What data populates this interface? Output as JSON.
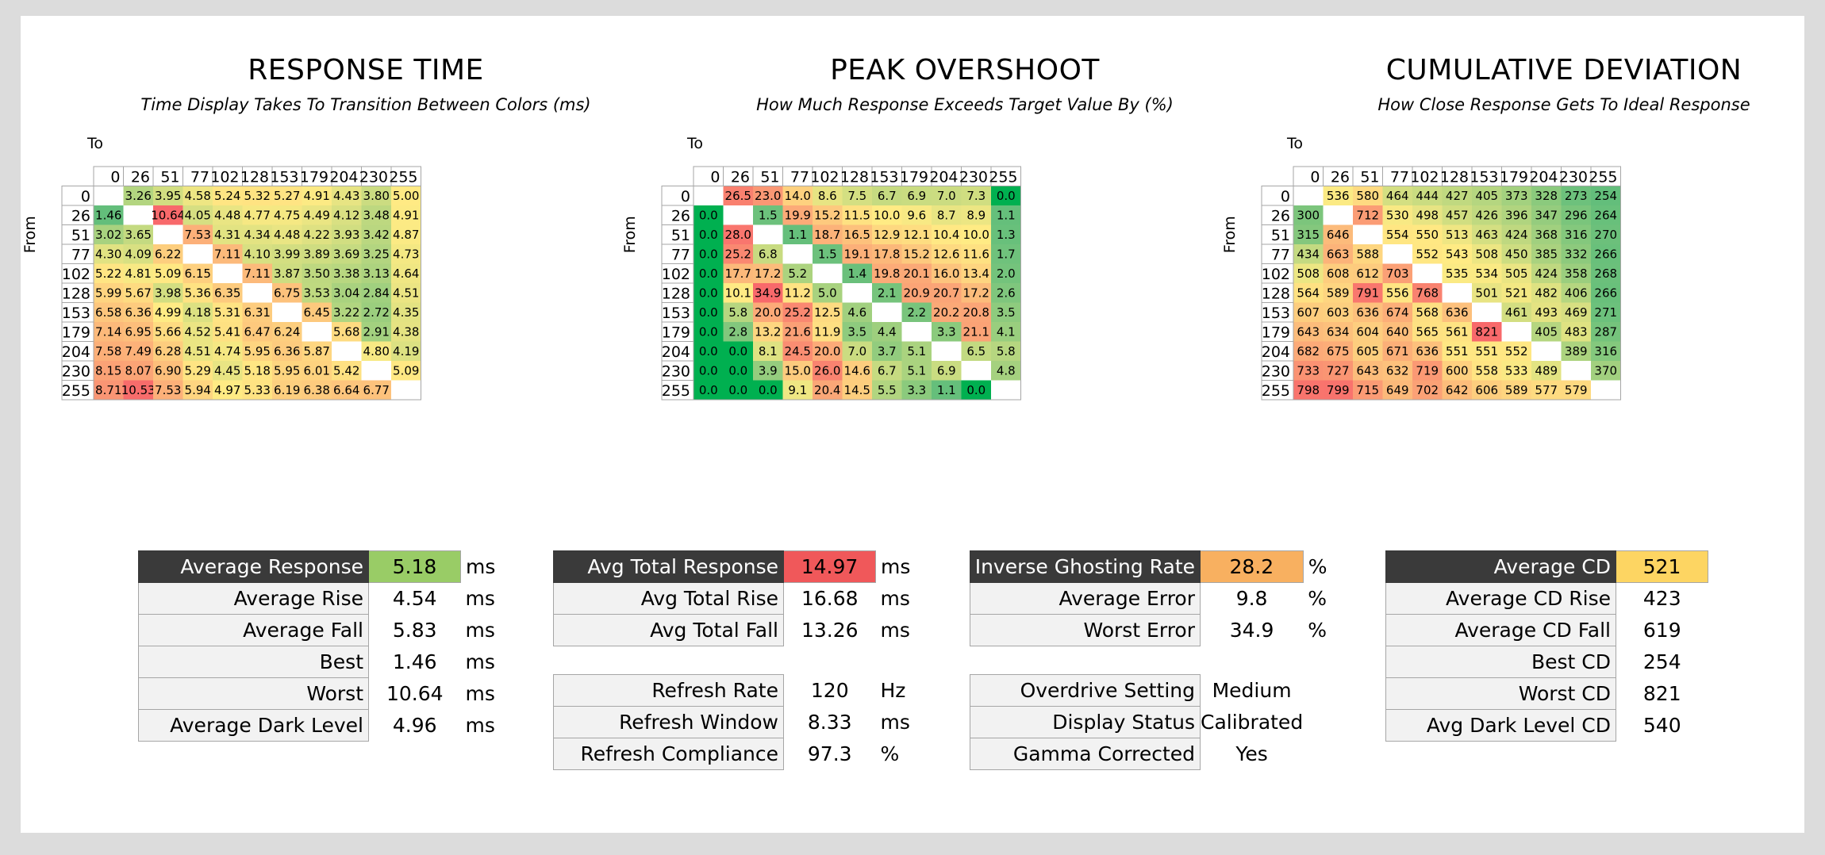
{
  "chart_data": [
    {
      "type": "heatmap",
      "title": "RESPONSE TIME",
      "subtitle": "Time Display Takes To Transition Between Colors (ms)",
      "xlabel": "To",
      "ylabel": "From",
      "color_scale": "good_low",
      "x": [
        "0",
        "26",
        "51",
        "77",
        "102",
        "128",
        "153",
        "179",
        "204",
        "230",
        "255"
      ],
      "y": [
        "0",
        "26",
        "51",
        "77",
        "102",
        "128",
        "153",
        "179",
        "204",
        "230",
        "255"
      ],
      "values": [
        [
          null,
          "3.26",
          "3.95",
          "4.58",
          "5.24",
          "5.32",
          "5.27",
          "4.91",
          "4.43",
          "3.80",
          "5.00"
        ],
        [
          "1.46",
          null,
          "10.64",
          "4.05",
          "4.48",
          "4.77",
          "4.75",
          "4.49",
          "4.12",
          "3.48",
          "4.91"
        ],
        [
          "3.02",
          "3.65",
          null,
          "7.53",
          "4.31",
          "4.34",
          "4.48",
          "4.22",
          "3.93",
          "3.42",
          "4.87"
        ],
        [
          "4.30",
          "4.09",
          "6.22",
          null,
          "7.11",
          "4.10",
          "3.99",
          "3.89",
          "3.69",
          "3.25",
          "4.73"
        ],
        [
          "5.22",
          "4.81",
          "5.09",
          "6.15",
          null,
          "7.11",
          "3.87",
          "3.50",
          "3.38",
          "3.13",
          "4.64"
        ],
        [
          "5.99",
          "5.67",
          "3.98",
          "5.36",
          "6.35",
          null,
          "6.75",
          "3.53",
          "3.04",
          "2.84",
          "4.51"
        ],
        [
          "6.58",
          "6.36",
          "4.99",
          "4.18",
          "5.31",
          "6.31",
          null,
          "6.45",
          "3.22",
          "2.72",
          "4.35"
        ],
        [
          "7.14",
          "6.95",
          "5.66",
          "4.52",
          "5.41",
          "6.47",
          "6.24",
          null,
          "5.68",
          "2.91",
          "4.38"
        ],
        [
          "7.58",
          "7.49",
          "6.28",
          "4.51",
          "4.74",
          "5.95",
          "6.36",
          "5.87",
          null,
          "4.80",
          "4.19"
        ],
        [
          "8.15",
          "8.07",
          "6.90",
          "5.29",
          "4.45",
          "5.18",
          "5.95",
          "6.01",
          "5.42",
          null,
          "5.09"
        ],
        [
          "8.71",
          "10.53",
          "7.53",
          "5.94",
          "4.97",
          "5.33",
          "6.19",
          "6.38",
          "6.64",
          "6.77",
          null
        ]
      ]
    },
    {
      "type": "heatmap",
      "title": "PEAK OVERSHOOT",
      "subtitle": "How Much Response Exceeds Target Value By (%)",
      "xlabel": "To",
      "ylabel": "From",
      "color_scale": "overshoot",
      "x": [
        "0",
        "26",
        "51",
        "77",
        "102",
        "128",
        "153",
        "179",
        "204",
        "230",
        "255"
      ],
      "y": [
        "0",
        "26",
        "51",
        "77",
        "102",
        "128",
        "153",
        "179",
        "204",
        "230",
        "255"
      ],
      "values": [
        [
          null,
          "26.5",
          "23.0",
          "14.0",
          "8.6",
          "7.5",
          "6.7",
          "6.9",
          "7.0",
          "7.3",
          "0.0"
        ],
        [
          "0.0",
          null,
          "1.5",
          "19.9",
          "15.2",
          "11.5",
          "10.0",
          "9.6",
          "8.7",
          "8.9",
          "1.1"
        ],
        [
          "0.0",
          "28.0",
          null,
          "1.1",
          "18.7",
          "16.5",
          "12.9",
          "12.1",
          "10.4",
          "10.0",
          "1.3"
        ],
        [
          "0.0",
          "25.2",
          "6.8",
          null,
          "1.5",
          "19.1",
          "17.8",
          "15.2",
          "12.6",
          "11.6",
          "1.7"
        ],
        [
          "0.0",
          "17.7",
          "17.2",
          "5.2",
          null,
          "1.4",
          "19.8",
          "20.1",
          "16.0",
          "13.4",
          "2.0"
        ],
        [
          "0.0",
          "10.1",
          "34.9",
          "11.2",
          "5.0",
          null,
          "2.1",
          "20.9",
          "20.7",
          "17.2",
          "2.6"
        ],
        [
          "0.0",
          "5.8",
          "20.0",
          "25.2",
          "12.5",
          "4.6",
          null,
          "2.2",
          "20.2",
          "20.8",
          "3.5"
        ],
        [
          "0.0",
          "2.8",
          "13.2",
          "21.6",
          "11.9",
          "3.5",
          "4.4",
          null,
          "3.3",
          "21.1",
          "4.1"
        ],
        [
          "0.0",
          "0.0",
          "8.1",
          "24.5",
          "20.0",
          "7.0",
          "3.7",
          "5.1",
          null,
          "6.5",
          "5.8"
        ],
        [
          "0.0",
          "0.0",
          "3.9",
          "15.0",
          "26.0",
          "14.6",
          "6.7",
          "5.1",
          "6.9",
          null,
          "4.8"
        ],
        [
          "0.0",
          "0.0",
          "0.0",
          "9.1",
          "20.4",
          "14.5",
          "5.5",
          "3.3",
          "1.1",
          "0.0",
          null
        ]
      ]
    },
    {
      "type": "heatmap",
      "title": "CUMULATIVE DEVIATION",
      "subtitle": "How Close Response Gets To Ideal Response",
      "xlabel": "To",
      "ylabel": "From",
      "color_scale": "good_low",
      "x": [
        "0",
        "26",
        "51",
        "77",
        "102",
        "128",
        "153",
        "179",
        "204",
        "230",
        "255"
      ],
      "y": [
        "0",
        "26",
        "51",
        "77",
        "102",
        "128",
        "153",
        "179",
        "204",
        "230",
        "255"
      ],
      "values": [
        [
          null,
          "536",
          "580",
          "464",
          "444",
          "427",
          "405",
          "373",
          "328",
          "273",
          "254"
        ],
        [
          "300",
          null,
          "712",
          "530",
          "498",
          "457",
          "426",
          "396",
          "347",
          "296",
          "264"
        ],
        [
          "315",
          "646",
          null,
          "554",
          "550",
          "513",
          "463",
          "424",
          "368",
          "316",
          "270"
        ],
        [
          "434",
          "663",
          "588",
          null,
          "552",
          "543",
          "508",
          "450",
          "385",
          "332",
          "266"
        ],
        [
          "508",
          "608",
          "612",
          "703",
          null,
          "535",
          "534",
          "505",
          "424",
          "358",
          "268"
        ],
        [
          "564",
          "589",
          "791",
          "556",
          "768",
          null,
          "501",
          "521",
          "482",
          "406",
          "266"
        ],
        [
          "607",
          "603",
          "636",
          "674",
          "568",
          "636",
          null,
          "461",
          "493",
          "469",
          "271"
        ],
        [
          "643",
          "634",
          "604",
          "640",
          "565",
          "561",
          "821",
          null,
          "405",
          "483",
          "287"
        ],
        [
          "682",
          "675",
          "605",
          "671",
          "636",
          "551",
          "551",
          "552",
          null,
          "389",
          "316"
        ],
        [
          "733",
          "727",
          "643",
          "632",
          "719",
          "600",
          "558",
          "533",
          "489",
          null,
          "370"
        ],
        [
          "798",
          "799",
          "715",
          "649",
          "702",
          "642",
          "606",
          "589",
          "577",
          "579",
          null
        ]
      ]
    }
  ],
  "stats": {
    "response": {
      "rows": [
        {
          "label": "Average Response",
          "value": "5.18",
          "unit": "ms",
          "head": true,
          "color": "#99cc66"
        },
        {
          "label": "Average Rise",
          "value": "4.54",
          "unit": "ms"
        },
        {
          "label": "Average Fall",
          "value": "5.83",
          "unit": "ms"
        },
        {
          "label": "Best",
          "value": "1.46",
          "unit": "ms"
        },
        {
          "label": "Worst",
          "value": "10.64",
          "unit": "ms"
        },
        {
          "label": "Average Dark Level",
          "value": "4.96",
          "unit": "ms"
        }
      ]
    },
    "total": {
      "rows": [
        {
          "label": "Avg Total Response",
          "value": "14.97",
          "unit": "ms",
          "head": true,
          "color": "#f0585a"
        },
        {
          "label": "Avg Total Rise",
          "value": "16.68",
          "unit": "ms"
        },
        {
          "label": "Avg Total Fall",
          "value": "13.26",
          "unit": "ms"
        },
        {
          "gap": true
        },
        {
          "label": "Refresh Rate",
          "value": "120",
          "unit": "Hz"
        },
        {
          "label": "Refresh Window",
          "value": "8.33",
          "unit": "ms"
        },
        {
          "label": "Refresh Compliance",
          "value": "97.3",
          "unit": "%"
        }
      ]
    },
    "ghosting": {
      "rows": [
        {
          "label": "Inverse Ghosting Rate",
          "value": "28.2",
          "unit": "%",
          "head": true,
          "color": "#f8b060"
        },
        {
          "label": "Average Error",
          "value": "9.8",
          "unit": "%"
        },
        {
          "label": "Worst Error",
          "value": "34.9",
          "unit": "%"
        },
        {
          "gap": true
        },
        {
          "label": "Overdrive Setting",
          "value": "Medium",
          "unit": ""
        },
        {
          "label": "Display Status",
          "value": "Calibrated",
          "unit": ""
        },
        {
          "label": "Gamma Corrected",
          "value": "Yes",
          "unit": ""
        }
      ]
    },
    "cd": {
      "rows": [
        {
          "label": "Average CD",
          "value": "521",
          "unit": "",
          "head": true,
          "color": "#fdd562"
        },
        {
          "label": "Average CD Rise",
          "value": "423",
          "unit": ""
        },
        {
          "label": "Average CD Fall",
          "value": "619",
          "unit": ""
        },
        {
          "label": "Best CD",
          "value": "254",
          "unit": ""
        },
        {
          "label": "Worst CD",
          "value": "821",
          "unit": ""
        },
        {
          "label": "Avg Dark Level CD",
          "value": "540",
          "unit": ""
        }
      ]
    }
  }
}
